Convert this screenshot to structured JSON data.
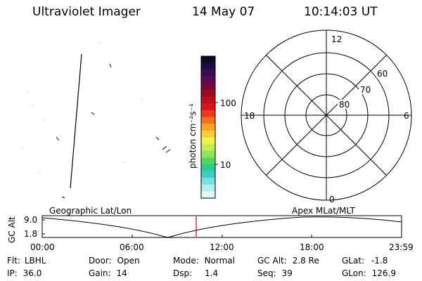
{
  "header": {
    "title": "Ultraviolet Imager",
    "date": "14 May 07",
    "time": "10:14:03 UT"
  },
  "colorbar": {
    "unit_label": "photon cm⁻²s⁻¹",
    "ticks": [
      "100",
      "10"
    ],
    "colors": [
      "#0a0a26",
      "#1e0e44",
      "#3a0d5b",
      "#5c0a55",
      "#7a0737",
      "#9c0a1f",
      "#bf0f1a",
      "#d8151c",
      "#ec3b1c",
      "#f3701d",
      "#f6a226",
      "#f6cf36",
      "#eef04e",
      "#c6ec54",
      "#8ee65d",
      "#4fd860",
      "#2fc995",
      "#3fcfc5",
      "#7bdde0",
      "#b7ecef",
      "#e0f6f7"
    ]
  },
  "polar": {
    "lat_labels": [
      "60",
      "70",
      "80"
    ],
    "mlt_labels": {
      "top": "12",
      "bottom": "0",
      "left": "18",
      "right": "6"
    }
  },
  "timeline": {
    "ylabel": "GC Alt",
    "y_ticks": [
      "9.0",
      "1.8"
    ],
    "left_label": "Geographic Lat/Lon",
    "right_label": "Apex MLat/MLT",
    "x_ticks": [
      "00:00",
      "06:00",
      "12:00",
      "18:00",
      "23:59"
    ],
    "current_time_color": "#d40000"
  },
  "info": {
    "filter": {
      "label": "Flt:",
      "value": "LBHL"
    },
    "ip": {
      "label": "IP:",
      "value": "36.0"
    },
    "door": {
      "label": "Door:",
      "value": "Open"
    },
    "gain": {
      "label": "Gain:",
      "value": "14"
    },
    "mode": {
      "label": "Mode:",
      "value": "Normal"
    },
    "dsp": {
      "label": "Dsp:",
      "value": "1.4"
    },
    "gc_alt": {
      "label": "GC Alt:",
      "value": "2.8 Re"
    },
    "seq": {
      "label": "Seq:",
      "value": "39"
    },
    "glat": {
      "label": "GLat:",
      "value": "-1.8"
    },
    "glon": {
      "label": "GLon:",
      "value": "126.9"
    }
  }
}
